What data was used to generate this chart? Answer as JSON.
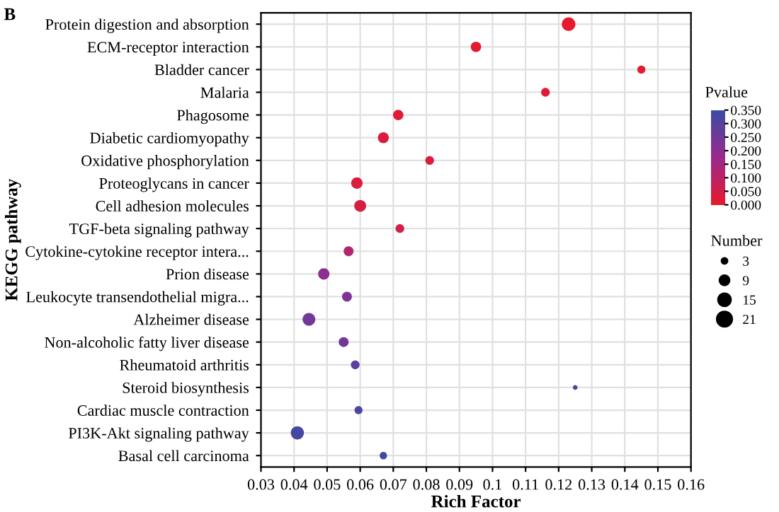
{
  "chart_data": {
    "type": "bubble",
    "orientation": "horizontal",
    "xlabel": "Rich Factor",
    "ylabel": "KEGG pathway",
    "clabel": "Pvalue",
    "legend_title": "Number",
    "annotations": [
      "B"
    ],
    "categories": [
      "Protein digestion and absorption",
      "ECM-receptor interaction",
      "Bladder cancer",
      "Malaria",
      "Phagosome",
      "Diabetic cardiomyopathy",
      "Oxidative phosphorylation",
      "Proteoglycans in cancer",
      "Cell adhesion molecules",
      "TGF-beta signaling pathway",
      "Cytokine-cytokine receptor intera...",
      "Prion disease",
      "Leukocyte transendothelial migra...",
      "Alzheimer disease",
      "Non-alcoholic fatty liver disease",
      "Rheumatoid arthritis",
      "Steroid biosynthesis",
      "Cardiac muscle contraction",
      "PI3K-Akt signaling pathway",
      "Basal cell carcinoma"
    ],
    "values": [
      0.123,
      0.095,
      0.145,
      0.116,
      0.0715,
      0.067,
      0.081,
      0.059,
      0.06,
      0.072,
      0.0565,
      0.049,
      0.056,
      0.0445,
      0.055,
      0.0585,
      0.125,
      0.0595,
      0.041,
      0.067
    ],
    "sizes": [
      17,
      10,
      6,
      7,
      10,
      11,
      7,
      12,
      13,
      7,
      9,
      12,
      9,
      15,
      9,
      7,
      2,
      6,
      16,
      5
    ],
    "cvalues": [
      0.001,
      0.01,
      0.01,
      0.02,
      0.02,
      0.03,
      0.03,
      0.03,
      0.04,
      0.05,
      0.12,
      0.2,
      0.23,
      0.25,
      0.25,
      0.29,
      0.3,
      0.32,
      0.33,
      0.34
    ],
    "size_legend": [
      3,
      9,
      15,
      21
    ],
    "clim": [
      0,
      0.35
    ],
    "cticks": [
      {
        "value": 0,
        "label": "0.000"
      },
      {
        "value": 0.05,
        "label": "0.050"
      },
      {
        "value": 0.1,
        "label": "0.100"
      },
      {
        "value": 0.15,
        "label": "0.150"
      },
      {
        "value": 0.2,
        "label": "0.200"
      },
      {
        "value": 0.25,
        "label": "0.250"
      },
      {
        "value": 0.3,
        "label": "0.300"
      },
      {
        "value": 0.35,
        "label": "0.350"
      }
    ],
    "xlim": [
      0.03,
      0.16
    ],
    "xticks": [
      0.03,
      0.04,
      0.05,
      0.06,
      0.07,
      0.08,
      0.09,
      0.1,
      0.11,
      0.12,
      0.13,
      0.14,
      0.15,
      0.16
    ],
    "grid": true
  }
}
